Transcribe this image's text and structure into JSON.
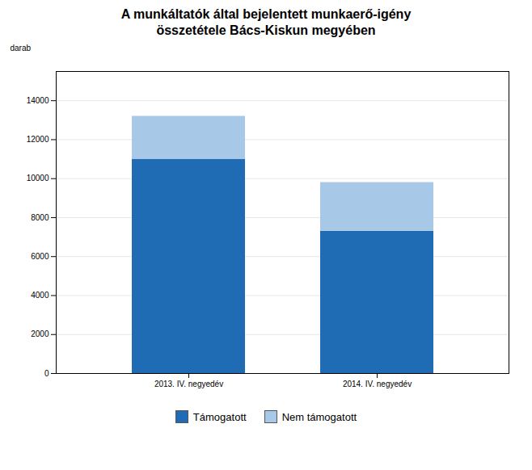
{
  "chart_data": {
    "type": "bar",
    "title": "A munkáltatók által bejelentett munkaerő-igény\nösszetétele Bács-Kiskun megyében",
    "ylabel": "darab",
    "categories": [
      "2013. IV. negyedév",
      "2014. IV. negyedév"
    ],
    "series": [
      {
        "name": "Támogatott",
        "color": "#1F6CB5",
        "values": [
          11000,
          7300
        ]
      },
      {
        "name": "Nem támogatott",
        "color": "#A8C8E8",
        "values": [
          2200,
          2500
        ]
      }
    ],
    "stacked": true,
    "ylim": [
      0,
      15500
    ],
    "yticks": [
      0,
      2000,
      4000,
      6000,
      8000,
      10000,
      12000,
      14000
    ],
    "grid": true,
    "legend": "bottom"
  }
}
